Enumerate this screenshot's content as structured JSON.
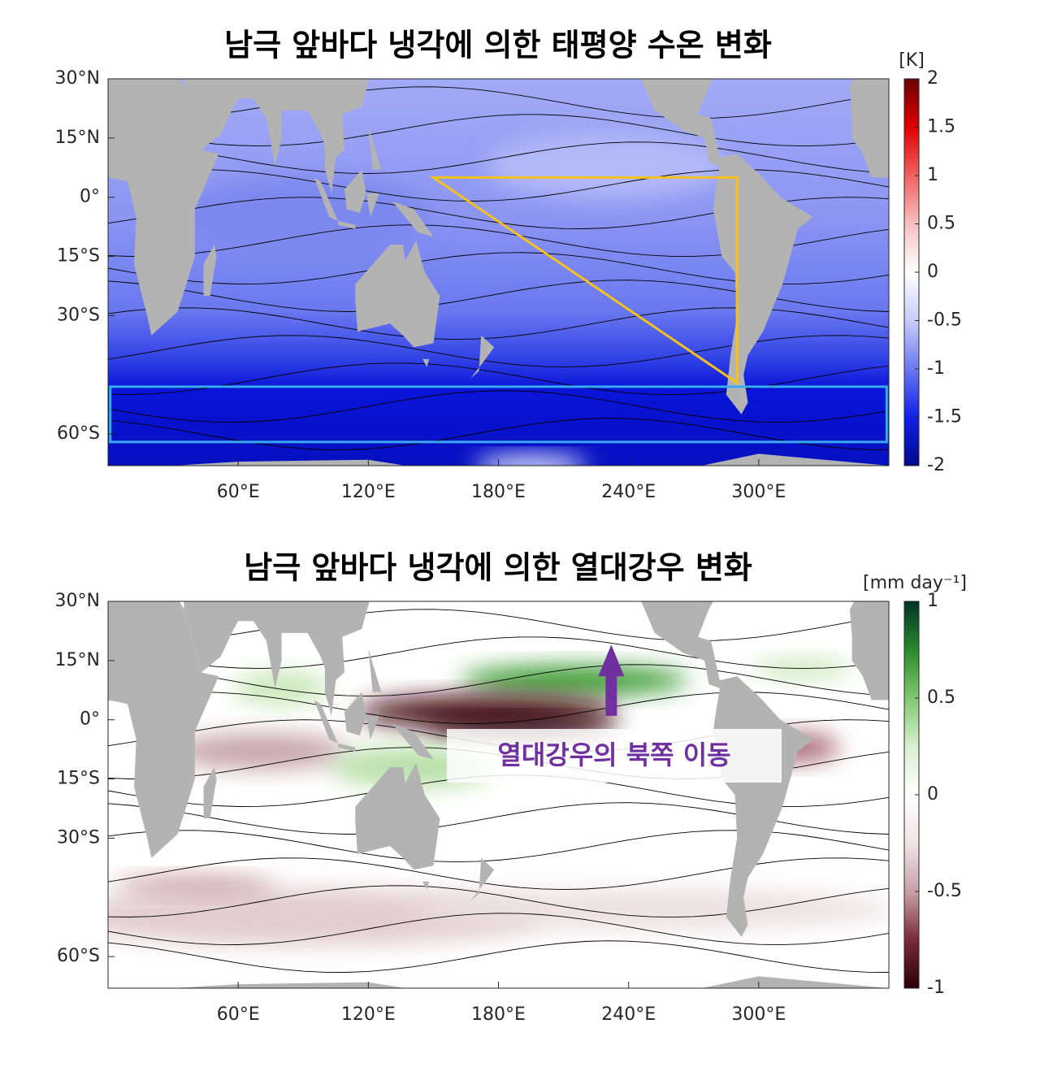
{
  "chart_data": [
    {
      "type": "map",
      "title": "남극 앞바다 냉각에 의한 태평양 수온 변화",
      "colorbar_label": "[K]",
      "xlim": [
        0,
        360
      ],
      "ylim": [
        -68,
        30
      ],
      "xticks": [
        {
          "value": 60,
          "label": "60°E"
        },
        {
          "value": 120,
          "label": "120°E"
        },
        {
          "value": 180,
          "label": "180°E"
        },
        {
          "value": 240,
          "label": "240°E"
        },
        {
          "value": 300,
          "label": "300°E"
        }
      ],
      "yticks": [
        {
          "value": 30,
          "label": "30°N"
        },
        {
          "value": 15,
          "label": "15°N"
        },
        {
          "value": 0,
          "label": "0°"
        },
        {
          "value": -15,
          "label": "15°S"
        },
        {
          "value": -30,
          "label": "30°S"
        },
        {
          "value": -60,
          "label": "60°S"
        }
      ],
      "clim": [
        -2,
        2
      ],
      "cticks": [
        2,
        1.5,
        1,
        0.5,
        0,
        -0.5,
        -1,
        -1.5,
        -2
      ],
      "colormap": [
        "#000a8c",
        "#1020e8",
        "#6a78f0",
        "#c8ccf8",
        "#ffffff",
        "#f8c0c0",
        "#f06060",
        "#e00000",
        "#6a0000"
      ]
    },
    {
      "type": "map",
      "title": "남극 앞바다 냉각에 의한 열대강우 변화",
      "colorbar_label": "[mm day⁻¹]",
      "xlim": [
        0,
        360
      ],
      "ylim": [
        -68,
        30
      ],
      "xticks": [
        {
          "value": 60,
          "label": "60°E"
        },
        {
          "value": 120,
          "label": "120°E"
        },
        {
          "value": 180,
          "label": "180°E"
        },
        {
          "value": 240,
          "label": "240°E"
        },
        {
          "value": 300,
          "label": "300°E"
        }
      ],
      "yticks": [
        {
          "value": 30,
          "label": "30°N"
        },
        {
          "value": 15,
          "label": "15°N"
        },
        {
          "value": 0,
          "label": "0°"
        },
        {
          "value": -15,
          "label": "15°S"
        },
        {
          "value": -30,
          "label": "30°S"
        },
        {
          "value": -60,
          "label": "60°S"
        }
      ],
      "clim": [
        -1,
        1
      ],
      "cticks": [
        1,
        0.5,
        0,
        -0.5,
        -1
      ],
      "colormap": [
        "#2a0008",
        "#7a2a3a",
        "#c8a0a8",
        "#f0e4e6",
        "#ffffff",
        "#d8f0d0",
        "#80c870",
        "#2a8a2a",
        "#00302a"
      ],
      "annotation": "열대강우의 북쪽 이동"
    }
  ]
}
